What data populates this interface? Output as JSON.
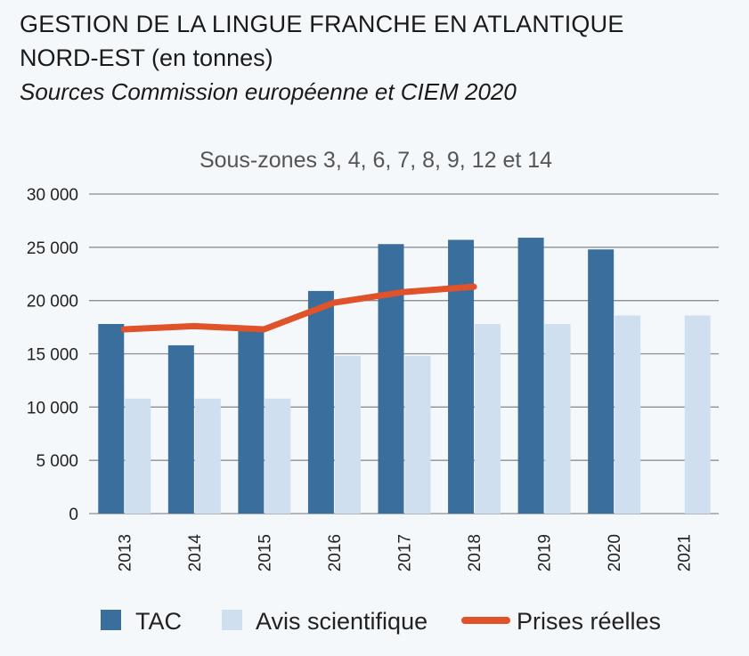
{
  "header": {
    "title_line1": "GESTION DE LA LINGUE FRANCHE EN ATLANTIQUE",
    "title_line2": "NORD-EST",
    "title_unit": "(en tonnes)",
    "source": "Sources Commission européenne et CIEM 2020"
  },
  "colors": {
    "tac": "#3a6e9c",
    "avis": "#cfdff0",
    "prises": "#e0522a",
    "grid": "#8a8f94"
  },
  "chart_data": {
    "type": "bar",
    "subtitle": "Sous-zones 3, 4, 6, 7, 8, 9, 12 et 14",
    "categories": [
      "2013",
      "2014",
      "2015",
      "2016",
      "2017",
      "2018",
      "2019",
      "2020",
      "2021"
    ],
    "ylim": [
      0,
      30000
    ],
    "yticks": [
      0,
      5000,
      10000,
      15000,
      20000,
      25000,
      30000
    ],
    "ytick_labels": [
      "0",
      "5 000",
      "10 000",
      "15 000",
      "20 000",
      "25 000",
      "30 000"
    ],
    "series": [
      {
        "name": "TAC",
        "kind": "bar",
        "values": [
          17800,
          15800,
          17200,
          20900,
          25300,
          25700,
          25900,
          24800,
          null
        ]
      },
      {
        "name": "Avis scientifique",
        "kind": "bar",
        "values": [
          10800,
          10800,
          10800,
          14800,
          14800,
          17800,
          17800,
          18600,
          18600
        ]
      },
      {
        "name": "Prises réelles",
        "kind": "line",
        "values": [
          17300,
          17600,
          17300,
          19800,
          20800,
          21300,
          null,
          null,
          null
        ]
      }
    ],
    "legend_position": "bottom"
  }
}
